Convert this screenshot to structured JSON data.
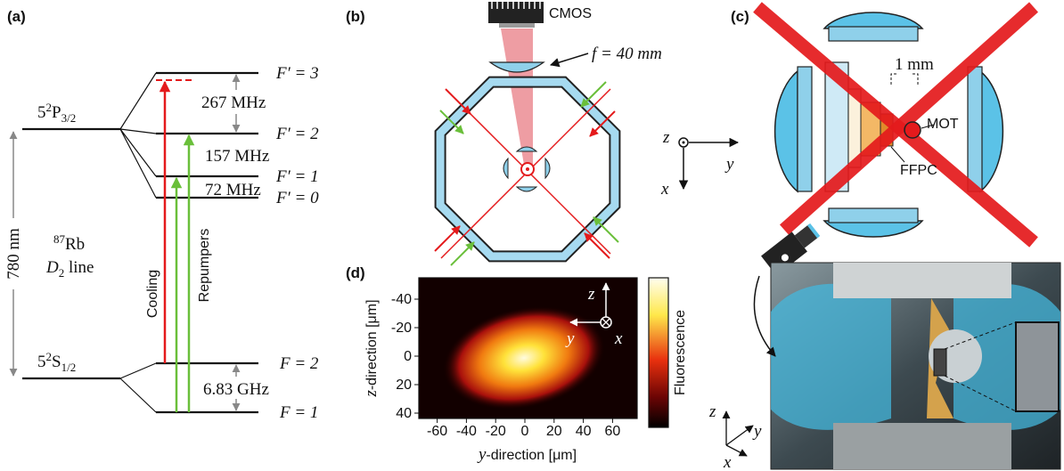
{
  "panel_a": {
    "label": "(a)",
    "excited_state": {
      "n": "5",
      "sup": "2",
      "term": "P",
      "sub": "3/2"
    },
    "ground_state": {
      "n": "5",
      "sup": "2",
      "term": "S",
      "sub": "1/2"
    },
    "excited_levels": [
      "F′ = 3",
      "F′ = 2",
      "F′ = 1",
      "F′ = 0"
    ],
    "ground_levels": [
      "F = 2",
      "F = 1"
    ],
    "splittings": [
      "267 MHz",
      "157 MHz",
      "72 MHz"
    ],
    "ground_splitting": "6.83 GHz",
    "wavelength": "780 nm",
    "isotope": {
      "sup": "87",
      "symbol": "Rb"
    },
    "line": {
      "main": "D",
      "sub": "2",
      "rest": " line"
    },
    "cooling": "Cooling",
    "repumpers": "Repumpers"
  },
  "panel_b": {
    "label": "(b)",
    "camera": "CMOS",
    "focal_length": "f = 40 mm",
    "axes": {
      "z": "z",
      "y": "y",
      "x": "x"
    }
  },
  "panel_c": {
    "label": "(c)",
    "scale": "1 mm",
    "mot": "MOT",
    "ffpc": "FFPC",
    "axes": {
      "z": "z",
      "y": "y",
      "x": "x"
    }
  },
  "panel_d": {
    "label": "(d)",
    "xlabel": {
      "var": "y",
      "rest": "-direction [μm]"
    },
    "ylabel": {
      "var": "z",
      "rest": "-direction [μm]"
    },
    "xticks": [
      -60,
      -40,
      -20,
      0,
      20,
      40,
      60
    ],
    "yticks": [
      -40,
      -20,
      0,
      20,
      40
    ],
    "colorbar_label": "Fluorescence",
    "inset_axes": {
      "z": "z",
      "y": "y",
      "x": "x"
    }
  }
}
